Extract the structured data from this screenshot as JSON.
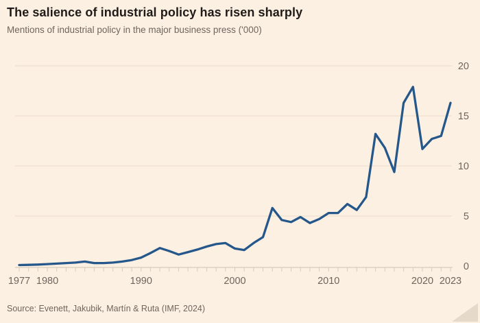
{
  "header": {
    "title": "The salience of industrial policy has risen sharply",
    "subtitle": "Mentions of industrial policy in the major business press ('000)"
  },
  "footer": {
    "source": "Source: Evenett, Jakubik, Martín & Ruta (IMF, 2024)"
  },
  "colors": {
    "background": "#fbf0e2",
    "line": "#25578b",
    "title_text": "#201b18",
    "muted_text": "#6f655c",
    "gridline": "#ecdccb",
    "axis": "#cfc2b3",
    "tick": "#d8cbbc"
  },
  "chart_data": {
    "type": "line",
    "title": "The salience of industrial policy has risen sharply",
    "subtitle": "Mentions of industrial policy in the major business press ('000)",
    "xlabel": "",
    "ylabel": "",
    "x": [
      1977,
      1978,
      1979,
      1980,
      1981,
      1982,
      1983,
      1984,
      1985,
      1986,
      1987,
      1988,
      1989,
      1990,
      1991,
      1992,
      1993,
      1994,
      1995,
      1996,
      1997,
      1998,
      1999,
      2000,
      2001,
      2002,
      2003,
      2004,
      2005,
      2006,
      2007,
      2008,
      2009,
      2010,
      2011,
      2012,
      2013,
      2014,
      2015,
      2016,
      2017,
      2018,
      2019,
      2020,
      2021,
      2022,
      2023
    ],
    "values": [
      0.1,
      0.12,
      0.15,
      0.2,
      0.25,
      0.3,
      0.35,
      0.45,
      0.3,
      0.3,
      0.35,
      0.45,
      0.6,
      0.85,
      1.3,
      1.8,
      1.5,
      1.15,
      1.4,
      1.65,
      1.95,
      2.2,
      2.3,
      1.75,
      1.6,
      2.3,
      2.9,
      5.8,
      4.6,
      4.4,
      4.9,
      4.3,
      4.7,
      5.3,
      5.3,
      6.2,
      5.6,
      6.9,
      13.2,
      11.8,
      9.4,
      16.3,
      17.9,
      11.7,
      12.7,
      13.0,
      16.3
    ],
    "xlim": [
      1977,
      2023
    ],
    "ylim": [
      0,
      20
    ],
    "y_ticks": [
      0,
      5,
      10,
      15,
      20
    ],
    "x_tick_labels": [
      "1977",
      "1980",
      "1990",
      "2000",
      "2010",
      "2020",
      "2023"
    ],
    "x_minor_tick_every_year": true,
    "grid": "horizontal",
    "y_label_side": "right",
    "legend": "none"
  }
}
